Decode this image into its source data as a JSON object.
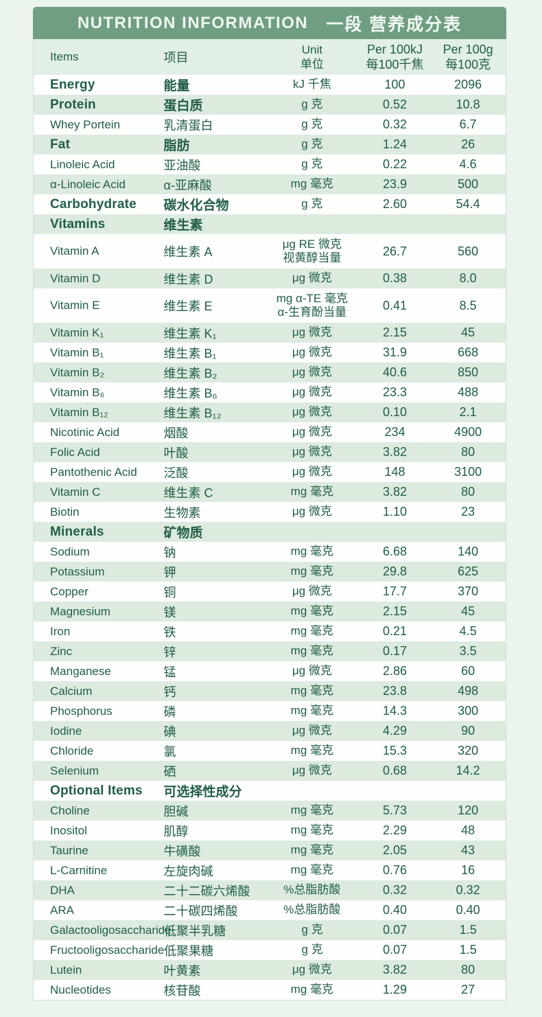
{
  "header": {
    "title_en": "NUTRITION INFORMATION",
    "title_zh": "一段 营养成分表"
  },
  "columns": {
    "items_en": "Items",
    "items_zh": "项目",
    "unit": "Unit\n单位",
    "per_100kj": "Per 100kJ\n每100千焦",
    "per_100g": "Per 100g\n每100克"
  },
  "colors": {
    "band_green": "#6f9e82",
    "row_shaded": "#dcebde",
    "header_row": "#e1efe5",
    "text_green": "#225e45",
    "page_background": "#ecf4ee"
  },
  "rows": [
    {
      "en": "Energy",
      "zh": "能量",
      "unit": "kJ 千焦",
      "kj": "100",
      "g": "2096",
      "bold": true
    },
    {
      "en": "Protein",
      "zh": "蛋白质",
      "unit": "g 克",
      "kj": "0.52",
      "g": "10.8",
      "bold": true
    },
    {
      "en": "Whey Portein",
      "zh": "乳清蛋白",
      "unit": "g 克",
      "kj": "0.32",
      "g": "6.7"
    },
    {
      "en": "Fat",
      "zh": "脂肪",
      "unit": "g 克",
      "kj": "1.24",
      "g": "26",
      "bold": true
    },
    {
      "en": "Linoleic Acid",
      "zh": "亚油酸",
      "unit": "g 克",
      "kj": "0.22",
      "g": "4.6"
    },
    {
      "en": "α-Linoleic Acid",
      "zh": "α-亚麻酸",
      "unit": "mg 毫克",
      "kj": "23.9",
      "g": "500"
    },
    {
      "en": "Carbohydrate",
      "zh": "碳水化合物",
      "unit": "g 克",
      "kj": "2.60",
      "g": "54.4",
      "bold": true
    },
    {
      "en": "Vitamins",
      "zh": "维生素",
      "unit": "",
      "kj": "",
      "g": "",
      "bold": true,
      "section": true
    },
    {
      "en": "Vitamin A",
      "zh": "维生素 A",
      "unit": "μg RE 微克\n视黄醇当量",
      "kj": "26.7",
      "g": "560"
    },
    {
      "en": "Vitamin D",
      "zh": "维生素 D",
      "unit": "μg 微克",
      "kj": "0.38",
      "g": "8.0"
    },
    {
      "en": "Vitamin E",
      "zh": "维生素 E",
      "unit": "mg α-TE 毫克\nα-生育酚当量",
      "kj": "0.41",
      "g": "8.5"
    },
    {
      "en": "Vitamin K₁",
      "zh": "维生素 K₁",
      "unit": "μg 微克",
      "kj": "2.15",
      "g": "45"
    },
    {
      "en": "Vitamin B₁",
      "zh": "维生素 B₁",
      "unit": "μg 微克",
      "kj": "31.9",
      "g": "668"
    },
    {
      "en": "Vitamin B₂",
      "zh": "维生素 B₂",
      "unit": "μg 微克",
      "kj": "40.6",
      "g": "850"
    },
    {
      "en": "Vitamin B₆",
      "zh": "维生素 B₆",
      "unit": "μg 微克",
      "kj": "23.3",
      "g": "488"
    },
    {
      "en": "Vitamin B₁₂",
      "zh": "维生素 B₁₂",
      "unit": "μg 微克",
      "kj": "0.10",
      "g": "2.1"
    },
    {
      "en": "Nicotinic Acid",
      "zh": "烟酸",
      "unit": "μg 微克",
      "kj": "234",
      "g": "4900"
    },
    {
      "en": "Folic Acid",
      "zh": "叶酸",
      "unit": "μg 微克",
      "kj": "3.82",
      "g": "80"
    },
    {
      "en": "Pantothenic Acid",
      "zh": "泛酸",
      "unit": "μg 微克",
      "kj": "148",
      "g": "3100"
    },
    {
      "en": "Vitamin C",
      "zh": "维生素 C",
      "unit": "mg 毫克",
      "kj": "3.82",
      "g": "80"
    },
    {
      "en": "Biotin",
      "zh": "生物素",
      "unit": "μg 微克",
      "kj": "1.10",
      "g": "23"
    },
    {
      "en": "Minerals",
      "zh": "矿物质",
      "unit": "",
      "kj": "",
      "g": "",
      "bold": true,
      "section": true
    },
    {
      "en": "Sodium",
      "zh": "钠",
      "unit": "mg 毫克",
      "kj": "6.68",
      "g": "140"
    },
    {
      "en": "Potassium",
      "zh": "钾",
      "unit": "mg 毫克",
      "kj": "29.8",
      "g": "625"
    },
    {
      "en": "Copper",
      "zh": "铜",
      "unit": "μg 微克",
      "kj": "17.7",
      "g": "370"
    },
    {
      "en": "Magnesium",
      "zh": "镁",
      "unit": "mg 毫克",
      "kj": "2.15",
      "g": "45"
    },
    {
      "en": "Iron",
      "zh": "铁",
      "unit": "mg 毫克",
      "kj": "0.21",
      "g": "4.5"
    },
    {
      "en": "Zinc",
      "zh": "锌",
      "unit": "mg 毫克",
      "kj": "0.17",
      "g": "3.5"
    },
    {
      "en": "Manganese",
      "zh": "锰",
      "unit": "μg 微克",
      "kj": "2.86",
      "g": "60"
    },
    {
      "en": "Calcium",
      "zh": "钙",
      "unit": "mg 毫克",
      "kj": "23.8",
      "g": "498"
    },
    {
      "en": "Phosphorus",
      "zh": "磷",
      "unit": "mg 毫克",
      "kj": "14.3",
      "g": "300"
    },
    {
      "en": "Iodine",
      "zh": "碘",
      "unit": "μg 微克",
      "kj": "4.29",
      "g": "90"
    },
    {
      "en": "Chloride",
      "zh": "氯",
      "unit": "mg 毫克",
      "kj": "15.3",
      "g": "320"
    },
    {
      "en": "Selenium",
      "zh": "硒",
      "unit": "μg 微克",
      "kj": "0.68",
      "g": "14.2"
    },
    {
      "en": "Optional Items",
      "zh": "可选择性成分",
      "unit": "",
      "kj": "",
      "g": "",
      "bold": true,
      "section": true
    },
    {
      "en": "Choline",
      "zh": "胆碱",
      "unit": "mg 毫克",
      "kj": "5.73",
      "g": "120"
    },
    {
      "en": "Inositol",
      "zh": "肌醇",
      "unit": "mg 毫克",
      "kj": "2.29",
      "g": "48"
    },
    {
      "en": "Taurine",
      "zh": "牛磺酸",
      "unit": "mg 毫克",
      "kj": "2.05",
      "g": "43"
    },
    {
      "en": "L-Carnitine",
      "zh": "左旋肉碱",
      "unit": "mg 毫克",
      "kj": "0.76",
      "g": "16"
    },
    {
      "en": "DHA",
      "zh": "二十二碳六烯酸",
      "unit": "%总脂肪酸",
      "kj": "0.32",
      "g": "0.32"
    },
    {
      "en": "ARA",
      "zh": "二十碳四烯酸",
      "unit": "%总脂肪酸",
      "kj": "0.40",
      "g": "0.40"
    },
    {
      "en": "Galactooligosaccharide",
      "zh": "低聚半乳糖",
      "unit": "g 克",
      "kj": "0.07",
      "g": "1.5"
    },
    {
      "en": "Fructooligosaccharide",
      "zh": "低聚果糖",
      "unit": "g 克",
      "kj": "0.07",
      "g": "1.5"
    },
    {
      "en": "Lutein",
      "zh": "叶黄素",
      "unit": "μg 微克",
      "kj": "3.82",
      "g": "80"
    },
    {
      "en": "Nucleotides",
      "zh": "核苷酸",
      "unit": "mg 毫克",
      "kj": "1.29",
      "g": "27"
    }
  ]
}
